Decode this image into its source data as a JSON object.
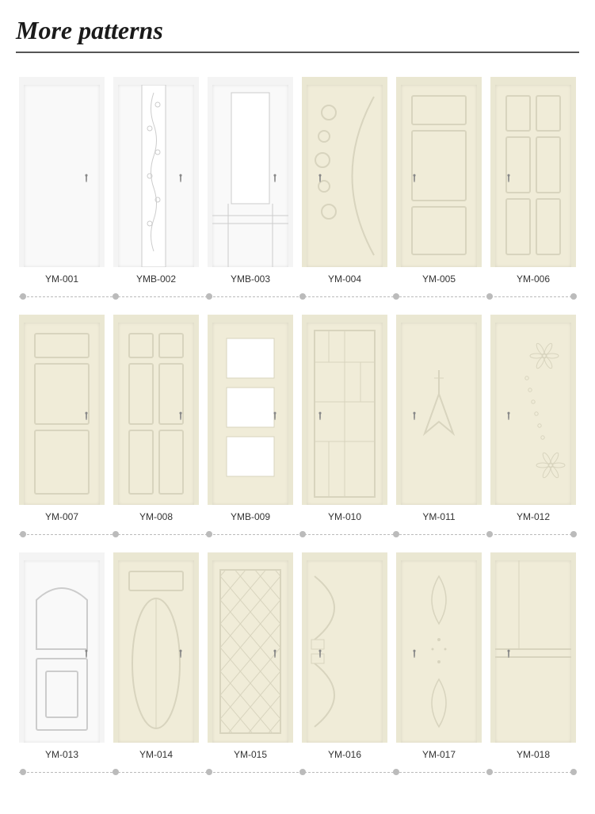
{
  "title": "More patterns",
  "colors": {
    "white": "#f9f9f9",
    "cream": "#f0ecd8",
    "frame_white": "#f4f4f4",
    "frame_cream": "#eae7d2",
    "line_light": "#cccccc",
    "line_cream": "#d8d4be",
    "handle": "#888888"
  },
  "label_fontsize": 12,
  "title_fontsize": 32,
  "rows": [
    {
      "dots": [
        9,
        126,
        244,
        362,
        480,
        598,
        704
      ],
      "items": [
        {
          "label": "YM-001",
          "color": "white",
          "handle": "right"
        },
        {
          "label": "YMB-002",
          "color": "white",
          "handle": "right"
        },
        {
          "label": "YMB-003",
          "color": "white",
          "handle": "right"
        },
        {
          "label": "YM-004",
          "color": "cream",
          "handle": "left"
        },
        {
          "label": "YM-005",
          "color": "cream",
          "handle": "left"
        },
        {
          "label": "YM-006",
          "color": "cream",
          "handle": "left"
        }
      ]
    },
    {
      "dots": [
        9,
        126,
        244,
        362,
        480,
        598,
        704
      ],
      "items": [
        {
          "label": "YM-007",
          "color": "cream",
          "handle": "right"
        },
        {
          "label": "YM-008",
          "color": "cream",
          "handle": "right"
        },
        {
          "label": "YMB-009",
          "color": "cream",
          "handle": "right"
        },
        {
          "label": "YM-010",
          "color": "cream",
          "handle": "left"
        },
        {
          "label": "YM-011",
          "color": "cream",
          "handle": "left"
        },
        {
          "label": "YM-012",
          "color": "cream",
          "handle": "left"
        }
      ]
    },
    {
      "dots": [
        9,
        126,
        244,
        362,
        480,
        598,
        704
      ],
      "items": [
        {
          "label": "YM-013",
          "color": "white",
          "handle": "right"
        },
        {
          "label": "YM-014",
          "color": "cream",
          "handle": "right"
        },
        {
          "label": "YM-015",
          "color": "cream",
          "handle": "right"
        },
        {
          "label": "YM-016",
          "color": "cream",
          "handle": "left"
        },
        {
          "label": "YM-017",
          "color": "cream",
          "handle": "left"
        },
        {
          "label": "YM-018",
          "color": "cream",
          "handle": "left"
        }
      ]
    }
  ]
}
